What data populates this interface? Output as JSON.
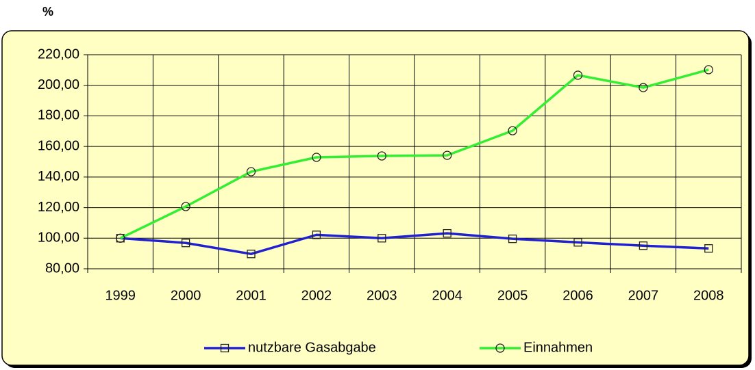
{
  "chart_data": {
    "type": "line",
    "y_label": "%",
    "categories": [
      "1999",
      "2000",
      "2001",
      "2002",
      "2003",
      "2004",
      "2005",
      "2006",
      "2007",
      "2008"
    ],
    "series": [
      {
        "name": "nutzbare Gasabgabe",
        "color": "#2020d0",
        "marker": "square",
        "values": [
          100,
          96.9,
          89.7,
          102.2,
          100,
          103.2,
          99.6,
          97.3,
          95.1,
          93.3
        ]
      },
      {
        "name": "Einnahmen",
        "color": "#33ee33",
        "marker": "circle",
        "values": [
          100,
          120.7,
          143.5,
          152.9,
          153.8,
          154.2,
          170.3,
          206.6,
          198.5,
          210.2
        ]
      }
    ],
    "ylim": [
      80,
      220
    ],
    "yticks": [
      {
        "value": 80,
        "label": "80,00"
      },
      {
        "value": 100,
        "label": "100,00"
      },
      {
        "value": 120,
        "label": "120,00"
      },
      {
        "value": 140,
        "label": "140,00"
      },
      {
        "value": 160,
        "label": "160,00"
      },
      {
        "value": 180,
        "label": "180,00"
      },
      {
        "value": 200,
        "label": "200,00"
      },
      {
        "value": 220,
        "label": "220,00"
      }
    ],
    "grid": true,
    "legend": "bottom"
  }
}
